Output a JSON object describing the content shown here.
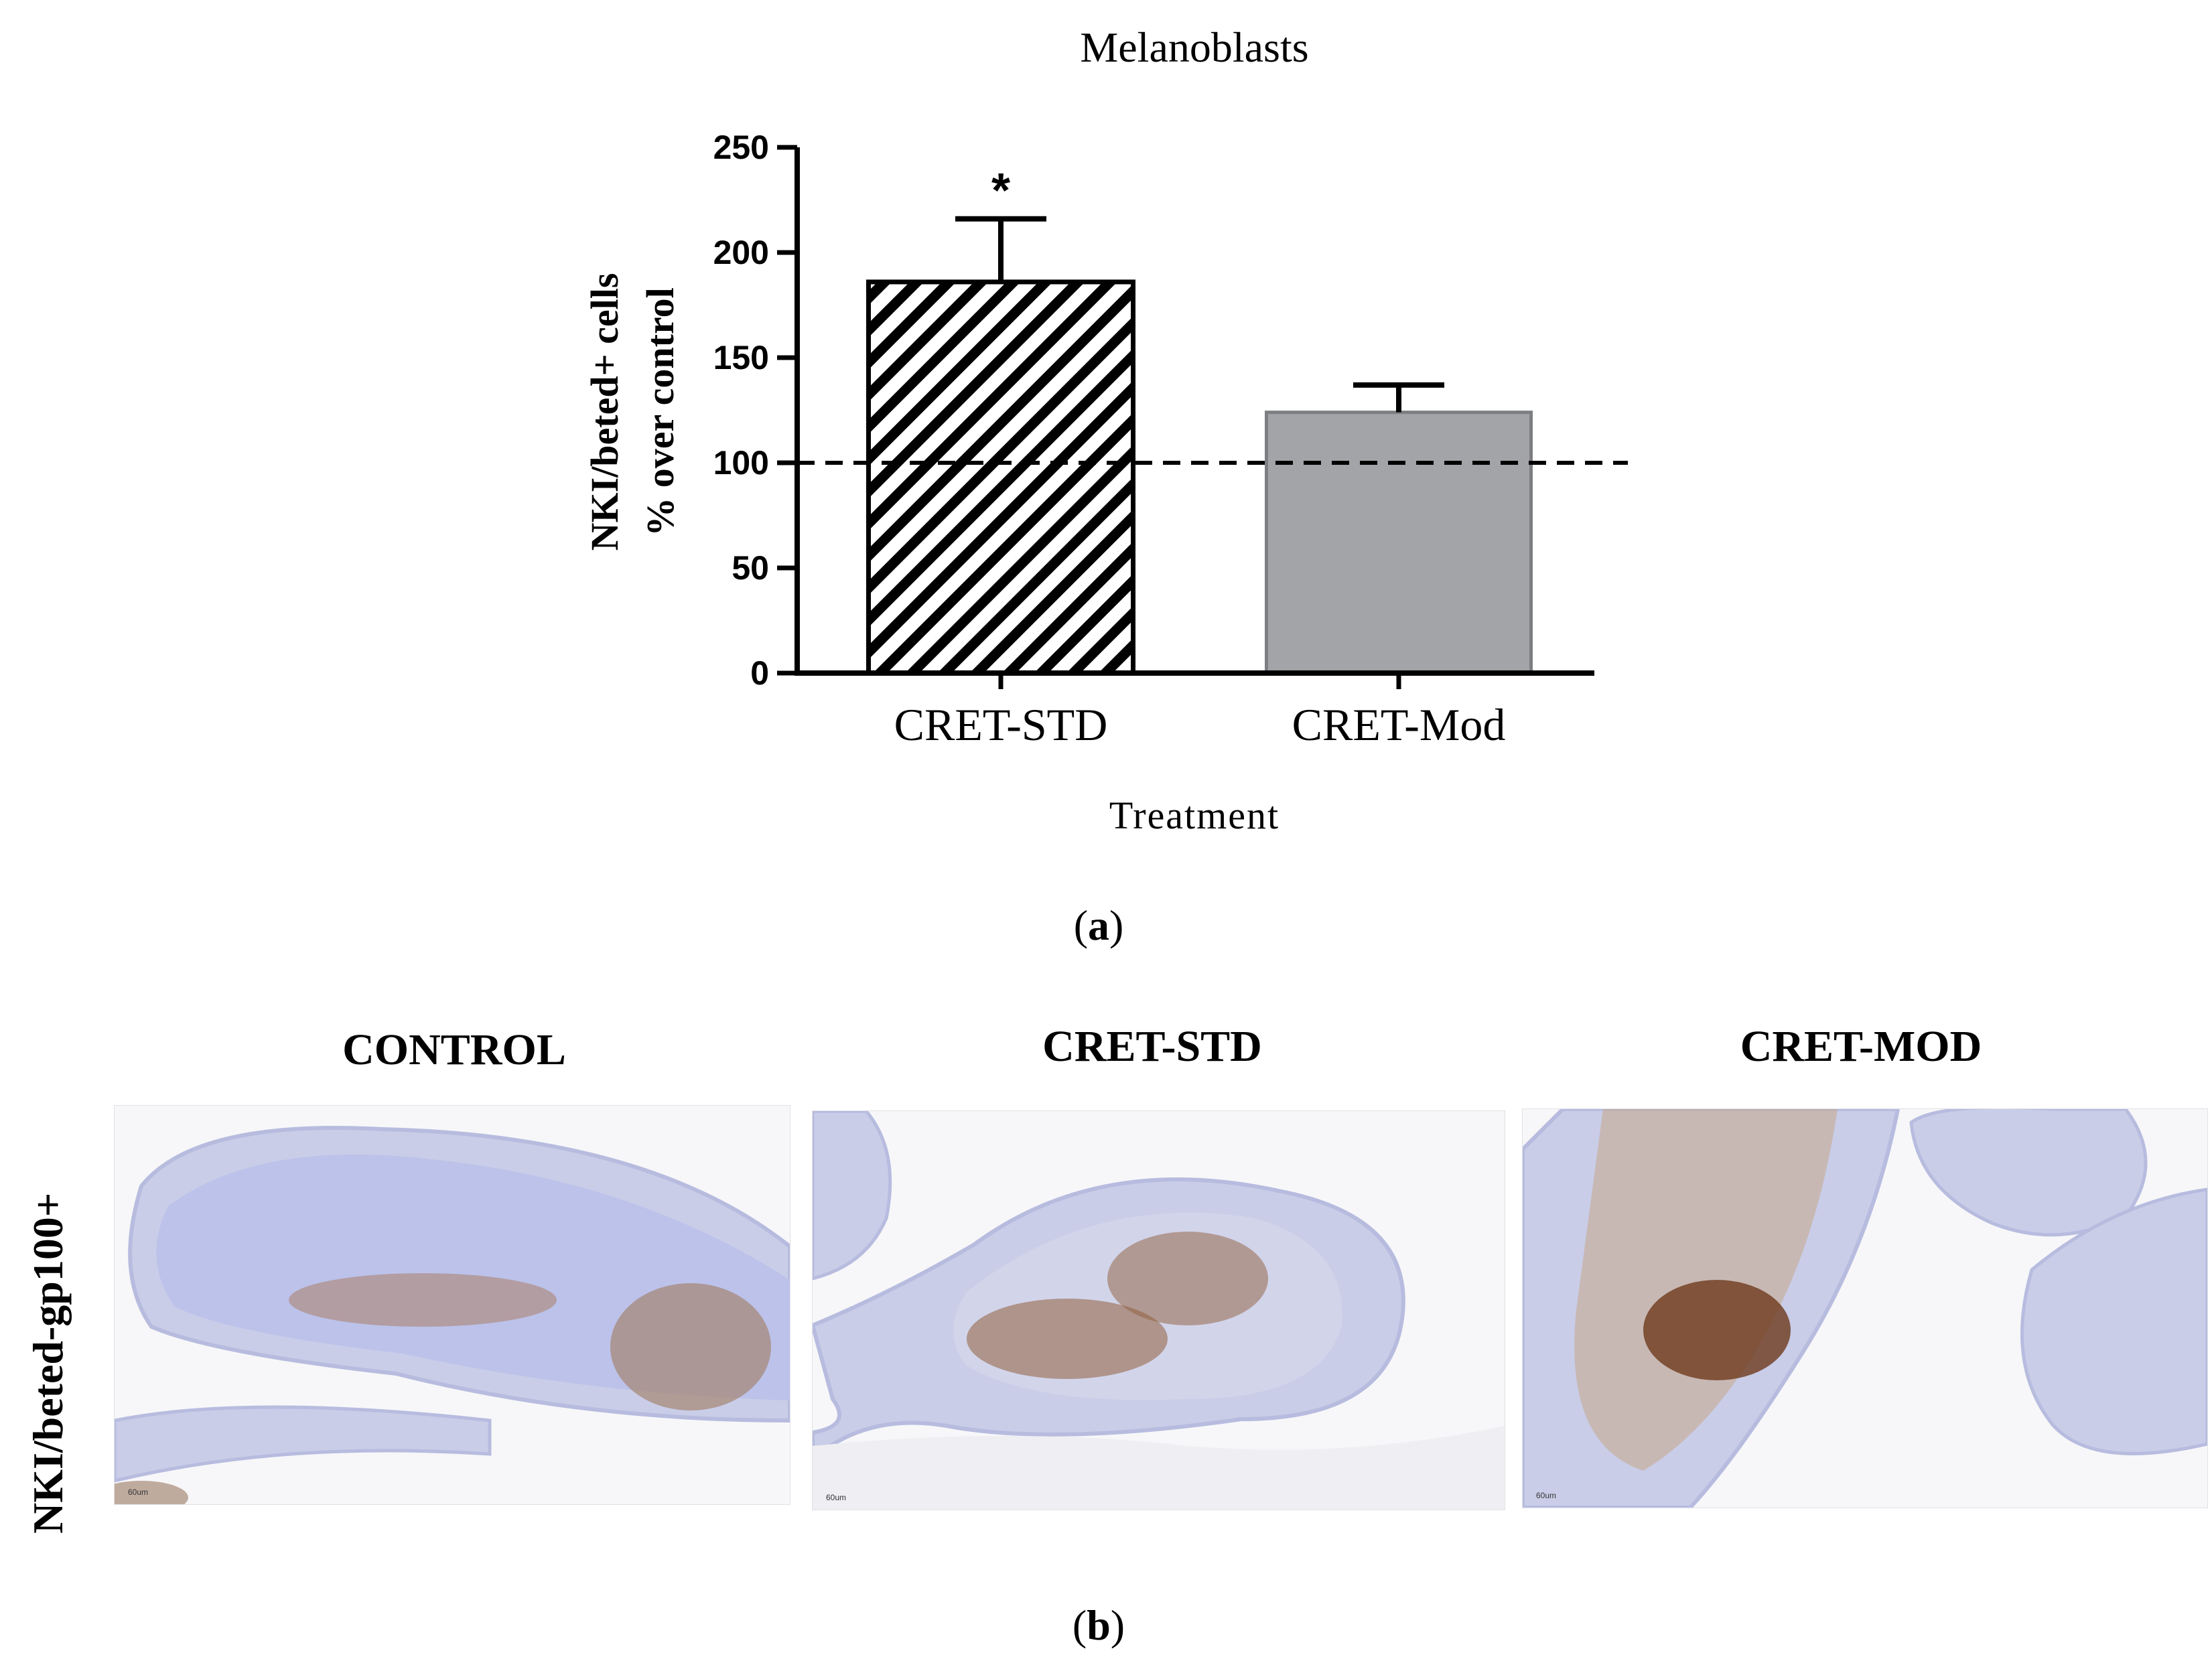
{
  "chart_data": {
    "type": "bar",
    "title": "Melanoblasts",
    "xlabel": "Treatment",
    "ylabel_line1": "NKI/beted+ cells",
    "ylabel_line2": "% over control",
    "categories": [
      "CRET-STD",
      "CRET-Mod"
    ],
    "values": [
      186,
      124
    ],
    "errors": [
      30,
      13
    ],
    "ylim": [
      0,
      250
    ],
    "yticks": [
      0,
      50,
      100,
      150,
      200,
      250
    ],
    "reference_line": 100,
    "significance": [
      "*",
      ""
    ],
    "bar_styles": [
      "hatched",
      "gray"
    ],
    "colors": {
      "bar_gray": "#a3a4a8",
      "hatch": "#000000"
    },
    "grid": false,
    "legend": "none"
  },
  "panel_a_label": {
    "open": "(",
    "letter": "a",
    "close": ")"
  },
  "panel_b_label": {
    "open": "(",
    "letter": "b",
    "close": ")"
  },
  "micrograph_row_label": "NKI/beted-gp100+",
  "micrographs": [
    {
      "title": "CONTROL",
      "scale": "60um"
    },
    {
      "title": "CRET-STD",
      "scale": "60um"
    },
    {
      "title": "CRET-MOD",
      "scale": "60um"
    }
  ]
}
